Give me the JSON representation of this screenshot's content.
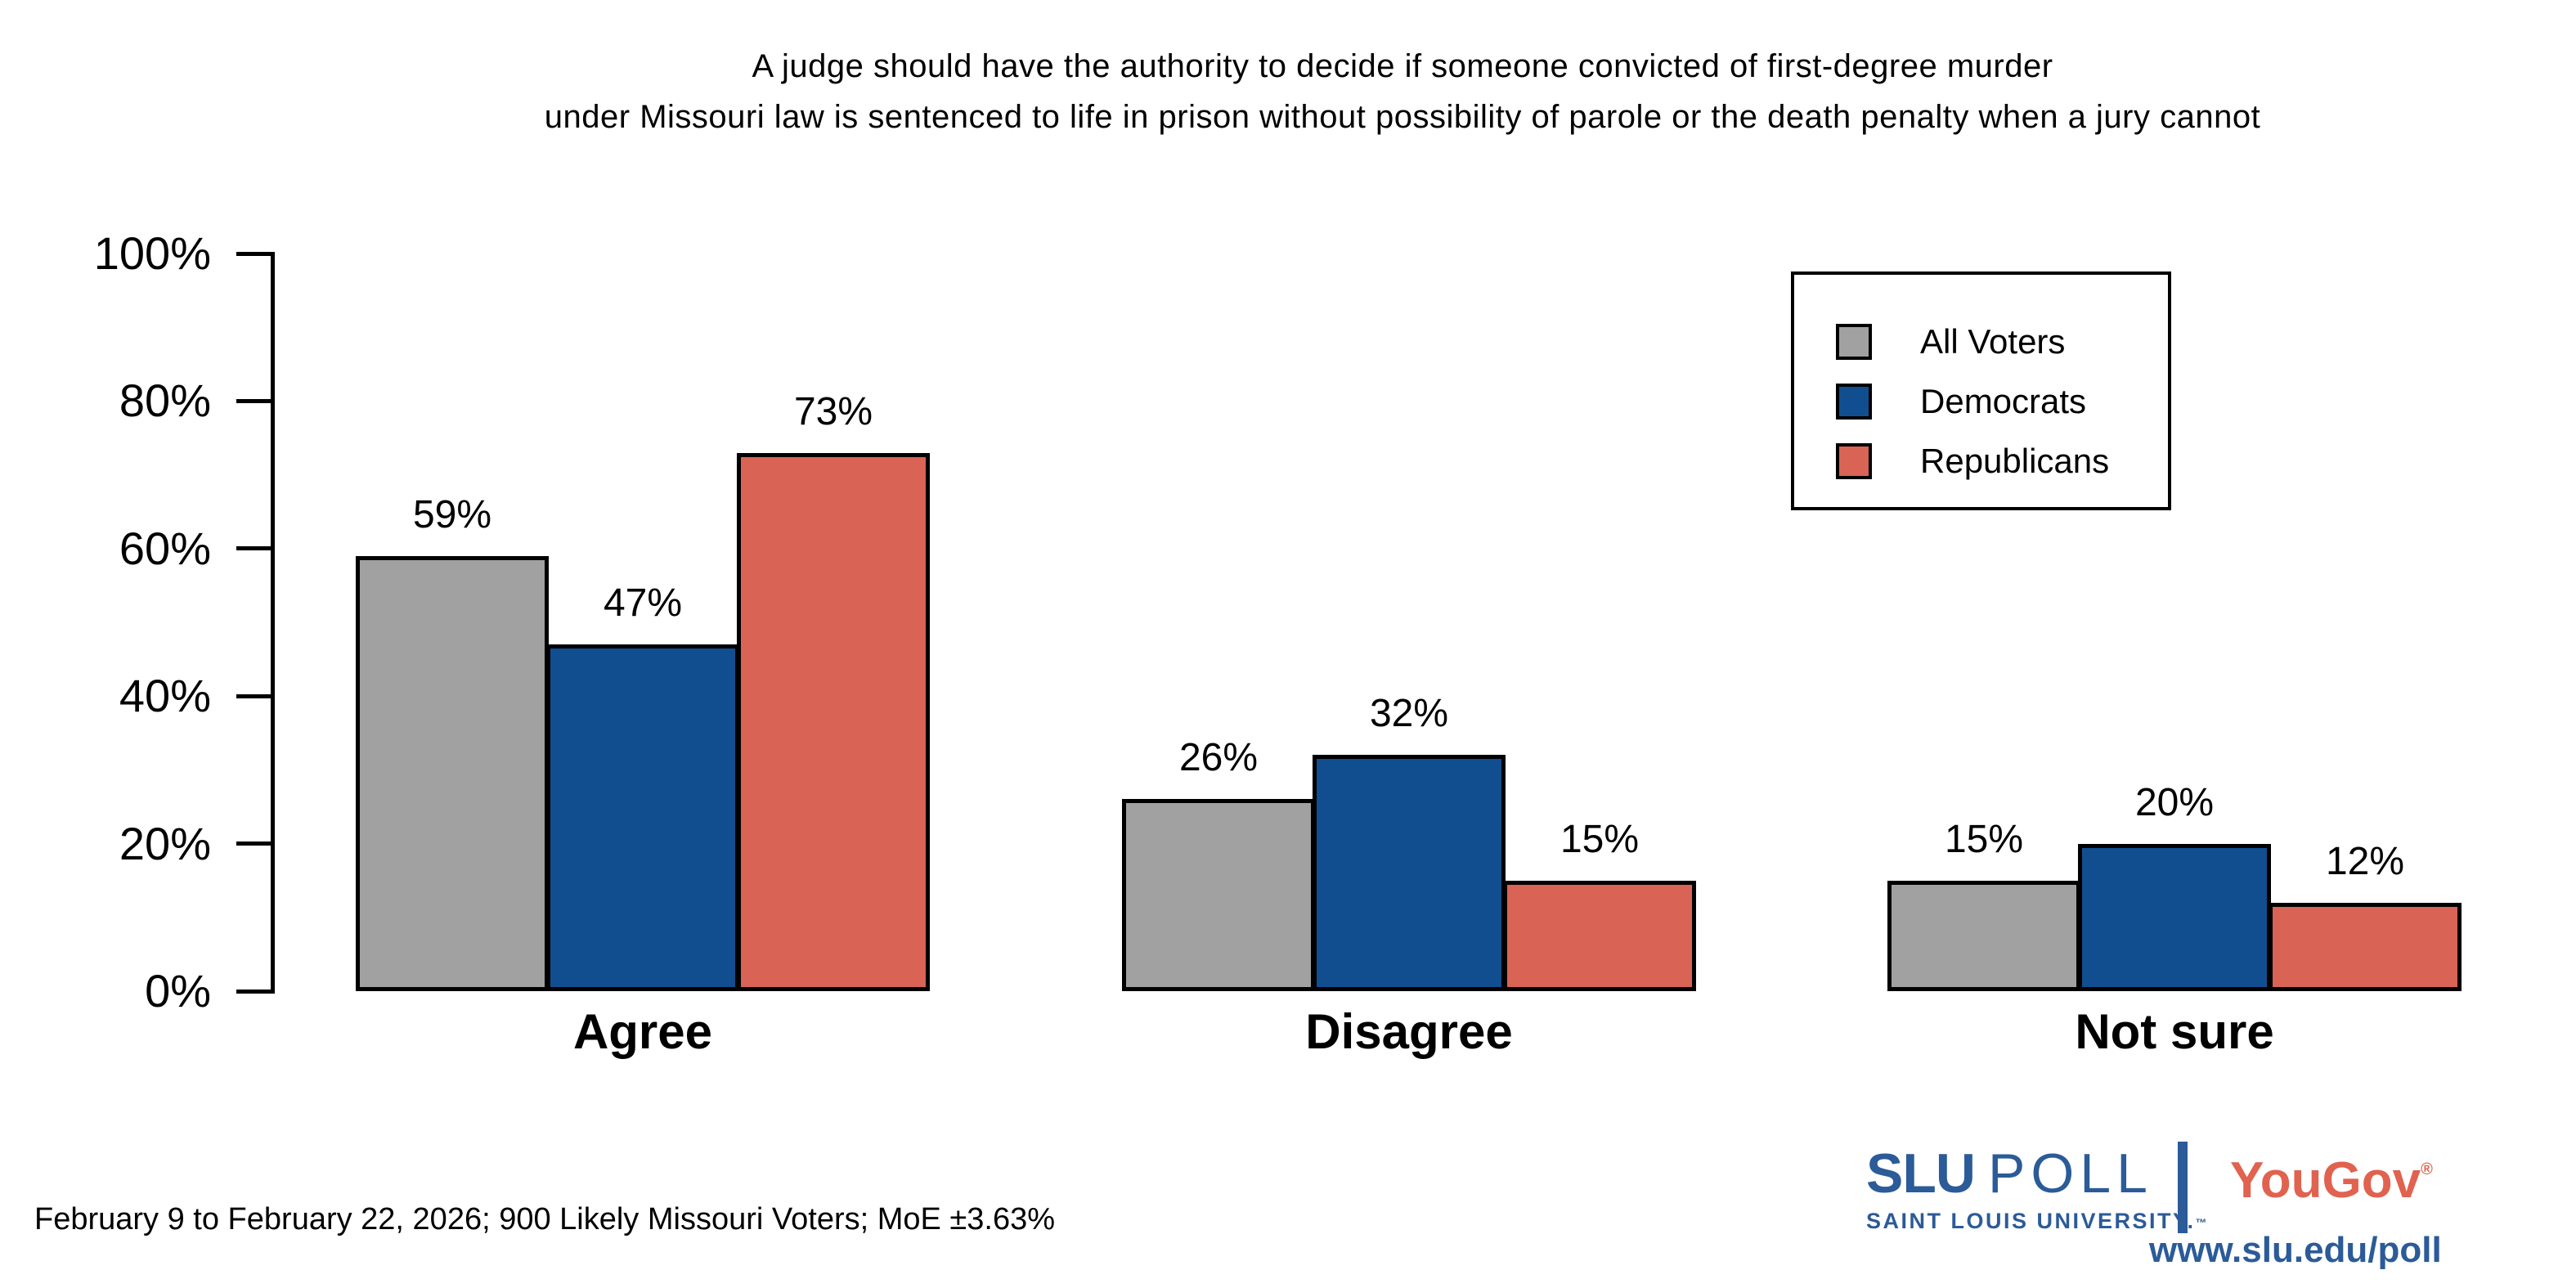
{
  "title": {
    "line1": "A judge should have the authority to decide if someone convicted of first-degree murder",
    "line2": "under Missouri law is sentenced to life in prison without possibility of parole or the death penalty when a jury cannot"
  },
  "chart_data": {
    "type": "bar",
    "categories": [
      "Agree",
      "Disagree",
      "Not sure"
    ],
    "series": [
      {
        "name": "All Voters",
        "color": "#a1a1a1",
        "values": [
          59,
          26,
          15
        ]
      },
      {
        "name": "Democrats",
        "color": "#114e8f",
        "values": [
          47,
          32,
          20
        ]
      },
      {
        "name": "Republicans",
        "color": "#d96355",
        "values": [
          73,
          15,
          12
        ]
      }
    ],
    "y_ticks": [
      "0%",
      "20%",
      "40%",
      "60%",
      "80%",
      "100%"
    ],
    "y_tick_values": [
      0,
      20,
      40,
      60,
      80,
      100
    ],
    "ylim": [
      0,
      100
    ],
    "value_label_suffix": "%",
    "bar_outline_color": "#000000",
    "grid": false,
    "legend_position": "top-right"
  },
  "footer": {
    "note": "February 9 to February 22, 2026; 900 Likely Missouri Voters; MoE ±3.63%"
  },
  "branding": {
    "slu_name": "SLU",
    "slu_poll": "POLL",
    "slu_subtitle": "SAINT LOUIS UNIVERSITY.",
    "slu_trademark": "™",
    "yougov": "YouGov",
    "yougov_registered": "®",
    "url": "www.slu.edu/poll",
    "slu_blue": "#2b5b98",
    "yougov_red": "#e0624f"
  }
}
